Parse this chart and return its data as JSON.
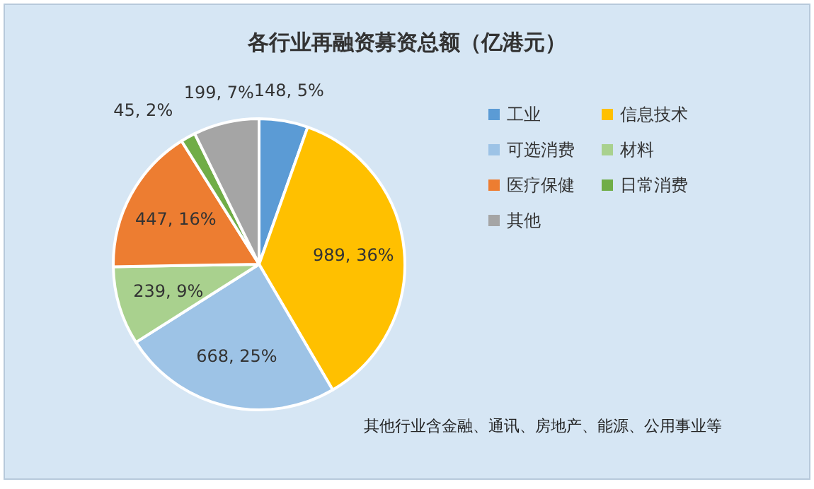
{
  "chart_data": {
    "type": "pie",
    "title": "各行业再融资募资总额（亿港元）",
    "categories": [
      "工业",
      "信息技术",
      "可选消费",
      "材料",
      "医疗保健",
      "日常消费",
      "其他"
    ],
    "values": [
      148,
      989,
      668,
      239,
      447,
      45,
      199
    ],
    "colors": [
      "#5b9bd5",
      "#ffc000",
      "#9dc3e6",
      "#a9d18e",
      "#ed7d31",
      "#70ad47",
      "#a5a5a5"
    ],
    "value_labels": [
      "148, 5%",
      "989, 36%",
      "668, 25%",
      "239, 9%",
      "447, 16%",
      "45, 2%",
      "199, 7%"
    ],
    "legend": "right",
    "annotations": [
      "其他行业含金融、通讯、房地产、能源、公用事业等"
    ]
  }
}
